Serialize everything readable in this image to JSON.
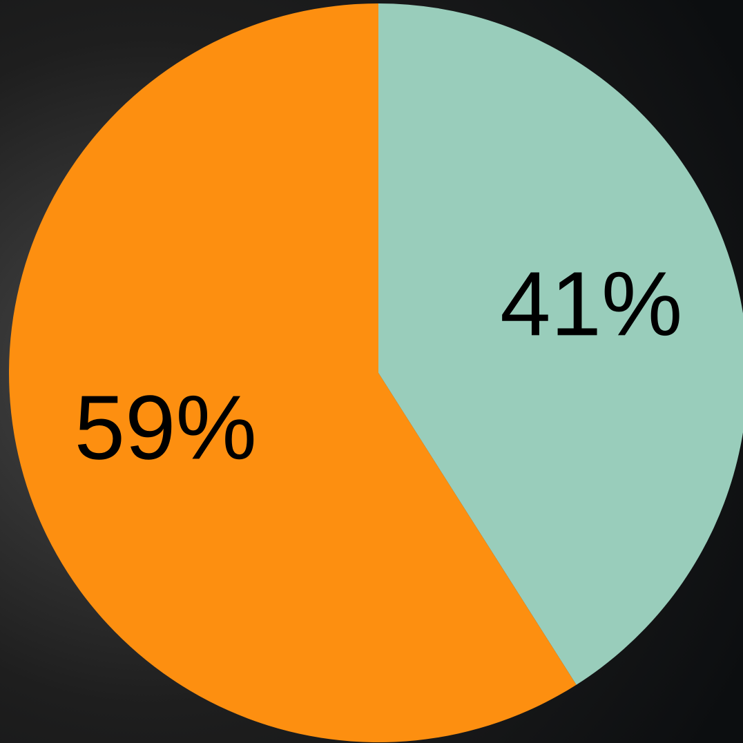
{
  "chart_data": {
    "type": "pie",
    "values": [
      41,
      59
    ],
    "value_labels": [
      "41%",
      "59%"
    ],
    "colors": [
      "#99cdbb",
      "#fd8f10"
    ]
  }
}
